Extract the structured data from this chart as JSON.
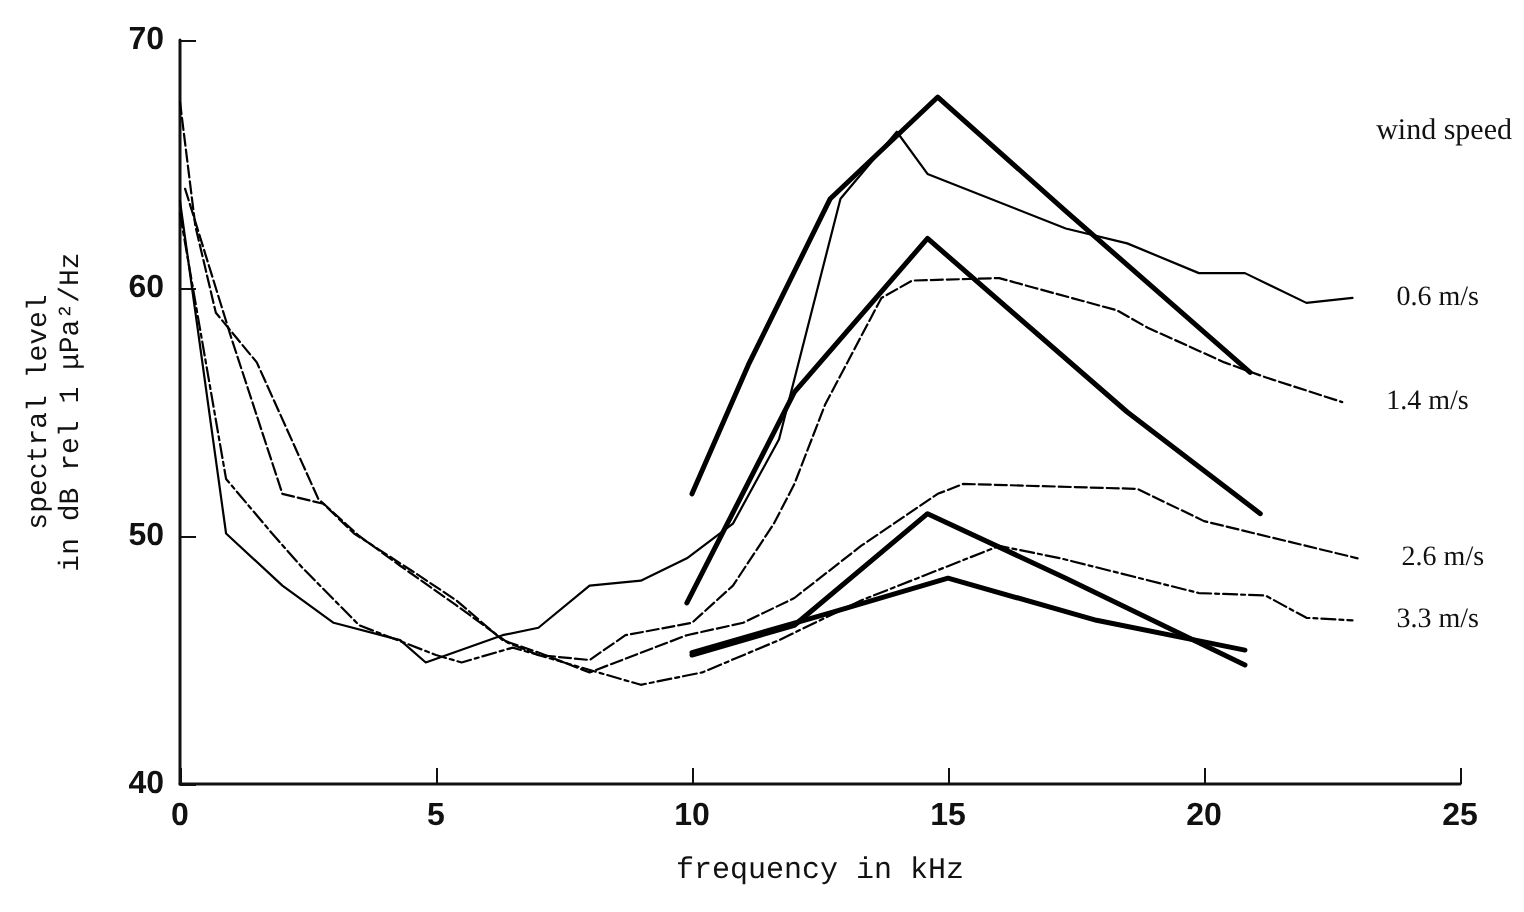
{
  "chart_data": {
    "type": "line",
    "xlabel": "frequency in kHz",
    "ylabel": "spectral level\nin dB rel 1 μPa²/Hz",
    "legend_title": "wind speed",
    "xlim": [
      0,
      25
    ],
    "xticks": [
      0,
      5,
      10,
      15,
      20,
      25
    ],
    "ylim": [
      40,
      70
    ],
    "yticks": [
      40,
      50,
      60,
      70
    ],
    "grid": false,
    "marker": "none",
    "series": [
      {
        "name": "0.6 m/s",
        "color": "#000000",
        "line_style": "solid",
        "x": [
          0,
          0.9,
          2,
          3,
          4.3,
          4.8,
          6.3,
          7,
          8,
          9,
          9.9,
          10.8,
          11.7,
          12.9,
          14,
          14.6,
          17.3,
          18.5,
          19.9,
          20.8,
          22,
          22.9
        ],
        "values": [
          63.5,
          50.1,
          48,
          46.5,
          45.8,
          44.9,
          46,
          46.3,
          48,
          48.2,
          49.1,
          50.5,
          53.9,
          63.6,
          66.3,
          64.6,
          62.4,
          61.8,
          60.6,
          60.6,
          59.4,
          59.6
        ]
      },
      {
        "name": "1.4 m/s",
        "color": "#000000",
        "line_style": "dashed",
        "x": [
          0,
          0.3,
          0.7,
          1.5,
          2.7,
          3.5,
          4.3,
          5.4,
          6.4,
          7,
          8,
          8.7,
          10,
          10.8,
          11.6,
          12,
          12.6,
          13.7,
          14.3,
          16,
          16.7,
          18.3,
          18.9,
          20.4,
          21.2,
          22.7
        ],
        "values": [
          67.5,
          62.5,
          59,
          57,
          51.5,
          50,
          48.8,
          47.2,
          45.7,
          45.2,
          45,
          46,
          46.5,
          48,
          50.5,
          52.1,
          55.3,
          59.6,
          60.3,
          60.4,
          60,
          59.1,
          58.4,
          57,
          56.4,
          55.4
        ]
      },
      {
        "name": "2.6 m/s",
        "color": "#000000",
        "line_style": "dashed",
        "x": [
          0.1,
          0.4,
          1,
          2,
          2.8,
          3.4,
          4.6,
          5.4,
          6.3,
          7,
          8,
          9.9,
          11,
          12,
          13.3,
          14.8,
          15.3,
          18.7,
          20,
          23
        ],
        "values": [
          64,
          62,
          58,
          51.7,
          51.3,
          50.1,
          48.5,
          47.4,
          45.8,
          45.3,
          44.5,
          46,
          46.5,
          47.5,
          49.6,
          51.7,
          52.1,
          51.9,
          50.6,
          49.1
        ]
      },
      {
        "name": "3.3 m/s",
        "color": "#000000",
        "line_style": "dotted",
        "x": [
          0,
          0.9,
          1.8,
          2.4,
          3.5,
          5,
          5.5,
          6.5,
          7.5,
          9,
          10.2,
          11.7,
          13.3,
          16,
          17.2,
          19.9,
          21.2,
          22,
          22.9
        ],
        "values": [
          63,
          52.3,
          50.1,
          48.7,
          46.4,
          45.2,
          44.9,
          45.5,
          44.9,
          44,
          44.5,
          45.8,
          47.4,
          49.6,
          49.1,
          47.7,
          47.6,
          46.7,
          46.6
        ]
      },
      {
        "color": "#000000",
        "line_style": "solid",
        "x": [
          10,
          11.1,
          12.7,
          14.8,
          17.3,
          20.9
        ],
        "values": [
          51.7,
          56.9,
          63.6,
          67.7,
          63.1,
          56.6
        ]
      },
      {
        "color": "#000000",
        "line_style": "solid",
        "x": [
          9.9,
          12,
          14.6,
          18.5,
          21.1
        ],
        "values": [
          47.3,
          55.8,
          62,
          55,
          50.9
        ]
      },
      {
        "color": "#000000",
        "line_style": "solid",
        "x": [
          10,
          12,
          14.6,
          17.3,
          20.8
        ],
        "values": [
          45.2,
          46.4,
          50.9,
          48.3,
          44.8
        ]
      },
      {
        "color": "#000000",
        "line_style": "solid",
        "x": [
          10,
          12.7,
          15,
          17.9,
          20.8
        ],
        "values": [
          45.3,
          46.9,
          48.3,
          46.6,
          45.4
        ]
      }
    ]
  }
}
